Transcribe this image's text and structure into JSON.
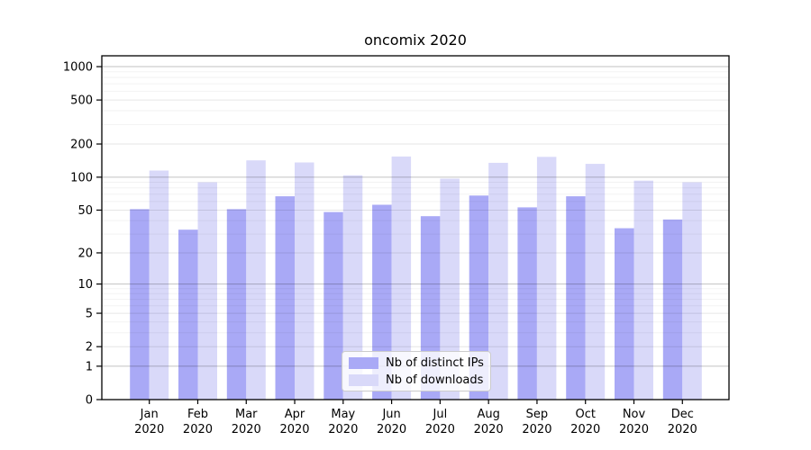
{
  "chart_data": {
    "type": "bar",
    "title": "oncomix 2020",
    "categories": [
      "Jan 2020",
      "Feb 2020",
      "Mar 2020",
      "Apr 2020",
      "May 2020",
      "Jun 2020",
      "Jul 2020",
      "Aug 2020",
      "Sep 2020",
      "Oct 2020",
      "Nov 2020",
      "Dec 2020"
    ],
    "series": [
      {
        "name": "Nb of distinct IPs",
        "color": "#a9a9f6",
        "values": [
          51,
          33,
          51,
          67,
          48,
          56,
          44,
          68,
          53,
          67,
          34,
          41
        ]
      },
      {
        "name": "Nb of downloads",
        "color": "#d9d9f9",
        "values": [
          115,
          90,
          142,
          136,
          104,
          154,
          97,
          135,
          153,
          132,
          93,
          90
        ]
      }
    ],
    "xlabel": "",
    "ylabel": "",
    "yscale": "log10(1+value)",
    "yticks": [
      0,
      1,
      2,
      5,
      10,
      20,
      50,
      100,
      200,
      500,
      1000
    ],
    "minor_gridlines": [
      3,
      4,
      6,
      7,
      8,
      9,
      30,
      40,
      60,
      70,
      80,
      90,
      300,
      400,
      600,
      700,
      800,
      900
    ],
    "major_decade_ticks": [
      1,
      10,
      100,
      1000
    ],
    "ylim": [
      0,
      1250
    ],
    "grid": "horizontal, drawn over bars",
    "legend_position": "lower center",
    "colors": {
      "axis": "#000000",
      "major_gridline_alpha": 0.24,
      "mid_gridline_alpha": 0.1,
      "minor_gridline_alpha": 0.05,
      "text": "#000000"
    }
  }
}
